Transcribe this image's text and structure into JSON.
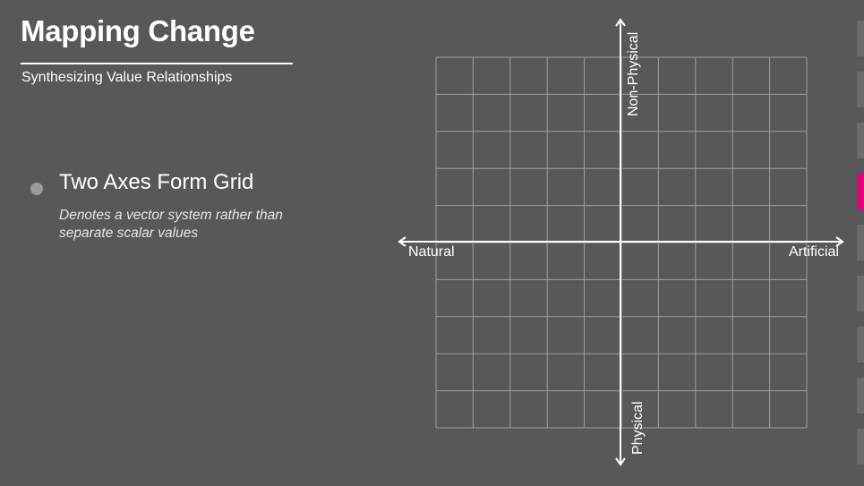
{
  "slide": {
    "title": "Mapping Change",
    "subtitle": "Synthesizing Value Relationships"
  },
  "point": {
    "heading": "Two Axes Form Grid",
    "description": "Denotes a vector system rather than separate scalar values"
  },
  "diagram": {
    "axes": {
      "horizontal": {
        "left_label": "Natural",
        "right_label": "Artificial"
      },
      "vertical": {
        "top_label": "Non-Physical",
        "bottom_label": "Physical"
      }
    },
    "grid": {
      "columns": 10,
      "rows": 10
    },
    "colors": {
      "axis": "#ffffff",
      "grid": "#9e9da2",
      "background": "#58575c"
    }
  },
  "nav": {
    "tab_count": 9,
    "active_index": 3,
    "colors": {
      "tab": "#6b6a6f",
      "active": "#e0007a"
    }
  }
}
